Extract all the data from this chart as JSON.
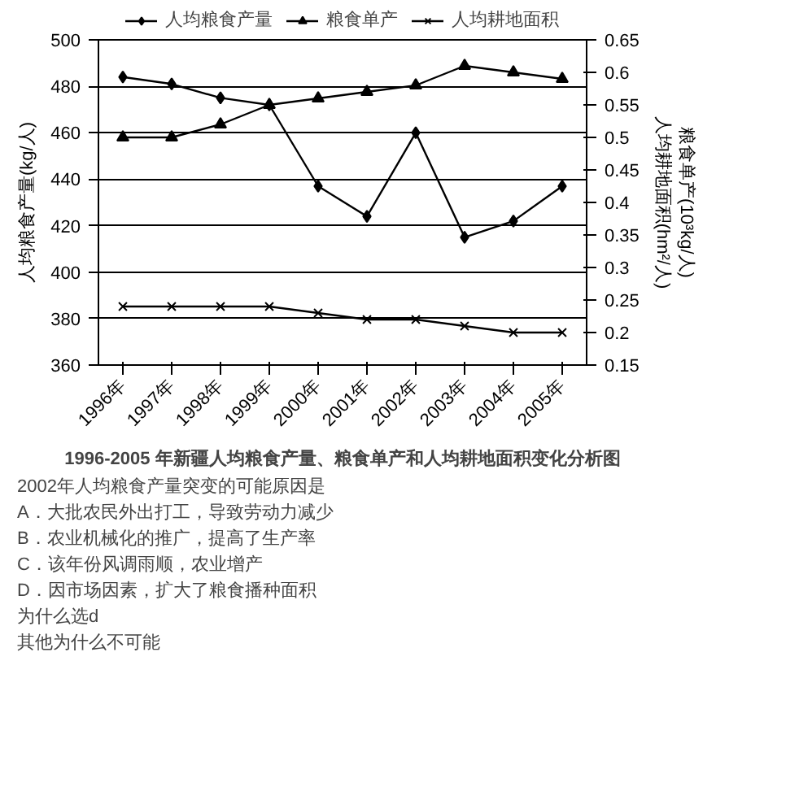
{
  "chart_data": {
    "type": "line",
    "title": "1996-2005 年新疆人均粮食产量、粮食单产和人均耕地面积变化分析图",
    "ylabel": "人均粮食产量(kg/人)",
    "y2label": "粮食单产(10³kg/人)\n人均耕地面积(hm²/人)",
    "categories": [
      "1996年",
      "1997年",
      "1998年",
      "1999年",
      "2000年",
      "2001年",
      "2002年",
      "2003年",
      "2004年",
      "2005年"
    ],
    "series": [
      {
        "name": "人均粮食产量",
        "color": "#000000",
        "marker": "diamond",
        "values": [
          484,
          481,
          475,
          472,
          437,
          424,
          460,
          415,
          422,
          437
        ]
      },
      {
        "name": "粮食单产",
        "color": "#000000",
        "marker": "triangle",
        "axis": "y2",
        "values": [
          0.5,
          0.5,
          0.52,
          0.55,
          0.56,
          0.57,
          0.58,
          0.61,
          0.6,
          0.59
        ]
      },
      {
        "name": "人均耕地面积",
        "color": "#000000",
        "marker": "cross",
        "axis": "y2",
        "values": [
          0.24,
          0.24,
          0.24,
          0.24,
          0.23,
          0.22,
          0.22,
          0.21,
          0.2,
          0.2
        ]
      }
    ],
    "ylim": [
      360,
      500
    ],
    "yticks": [
      360,
      380,
      400,
      420,
      440,
      460,
      480,
      500
    ],
    "y2lim": [
      0.15,
      0.65
    ],
    "y2ticks": [
      0.15,
      0.2,
      0.25,
      0.3,
      0.35,
      0.4,
      0.45,
      0.5,
      0.55,
      0.6,
      0.65
    ],
    "grid": "y",
    "legend": "top",
    "annotations": [
      "2002年人均粮食产量突变的可能原因是",
      "A．大批农民外出打工，导致劳动力减少",
      "B．农业机械化的推广，提高了生产率",
      "C．该年份风调雨顺，农业增产",
      "D．因市场因素，扩大了粮食播种面积",
      "为什么选d",
      "其他为什么不可能"
    ]
  }
}
